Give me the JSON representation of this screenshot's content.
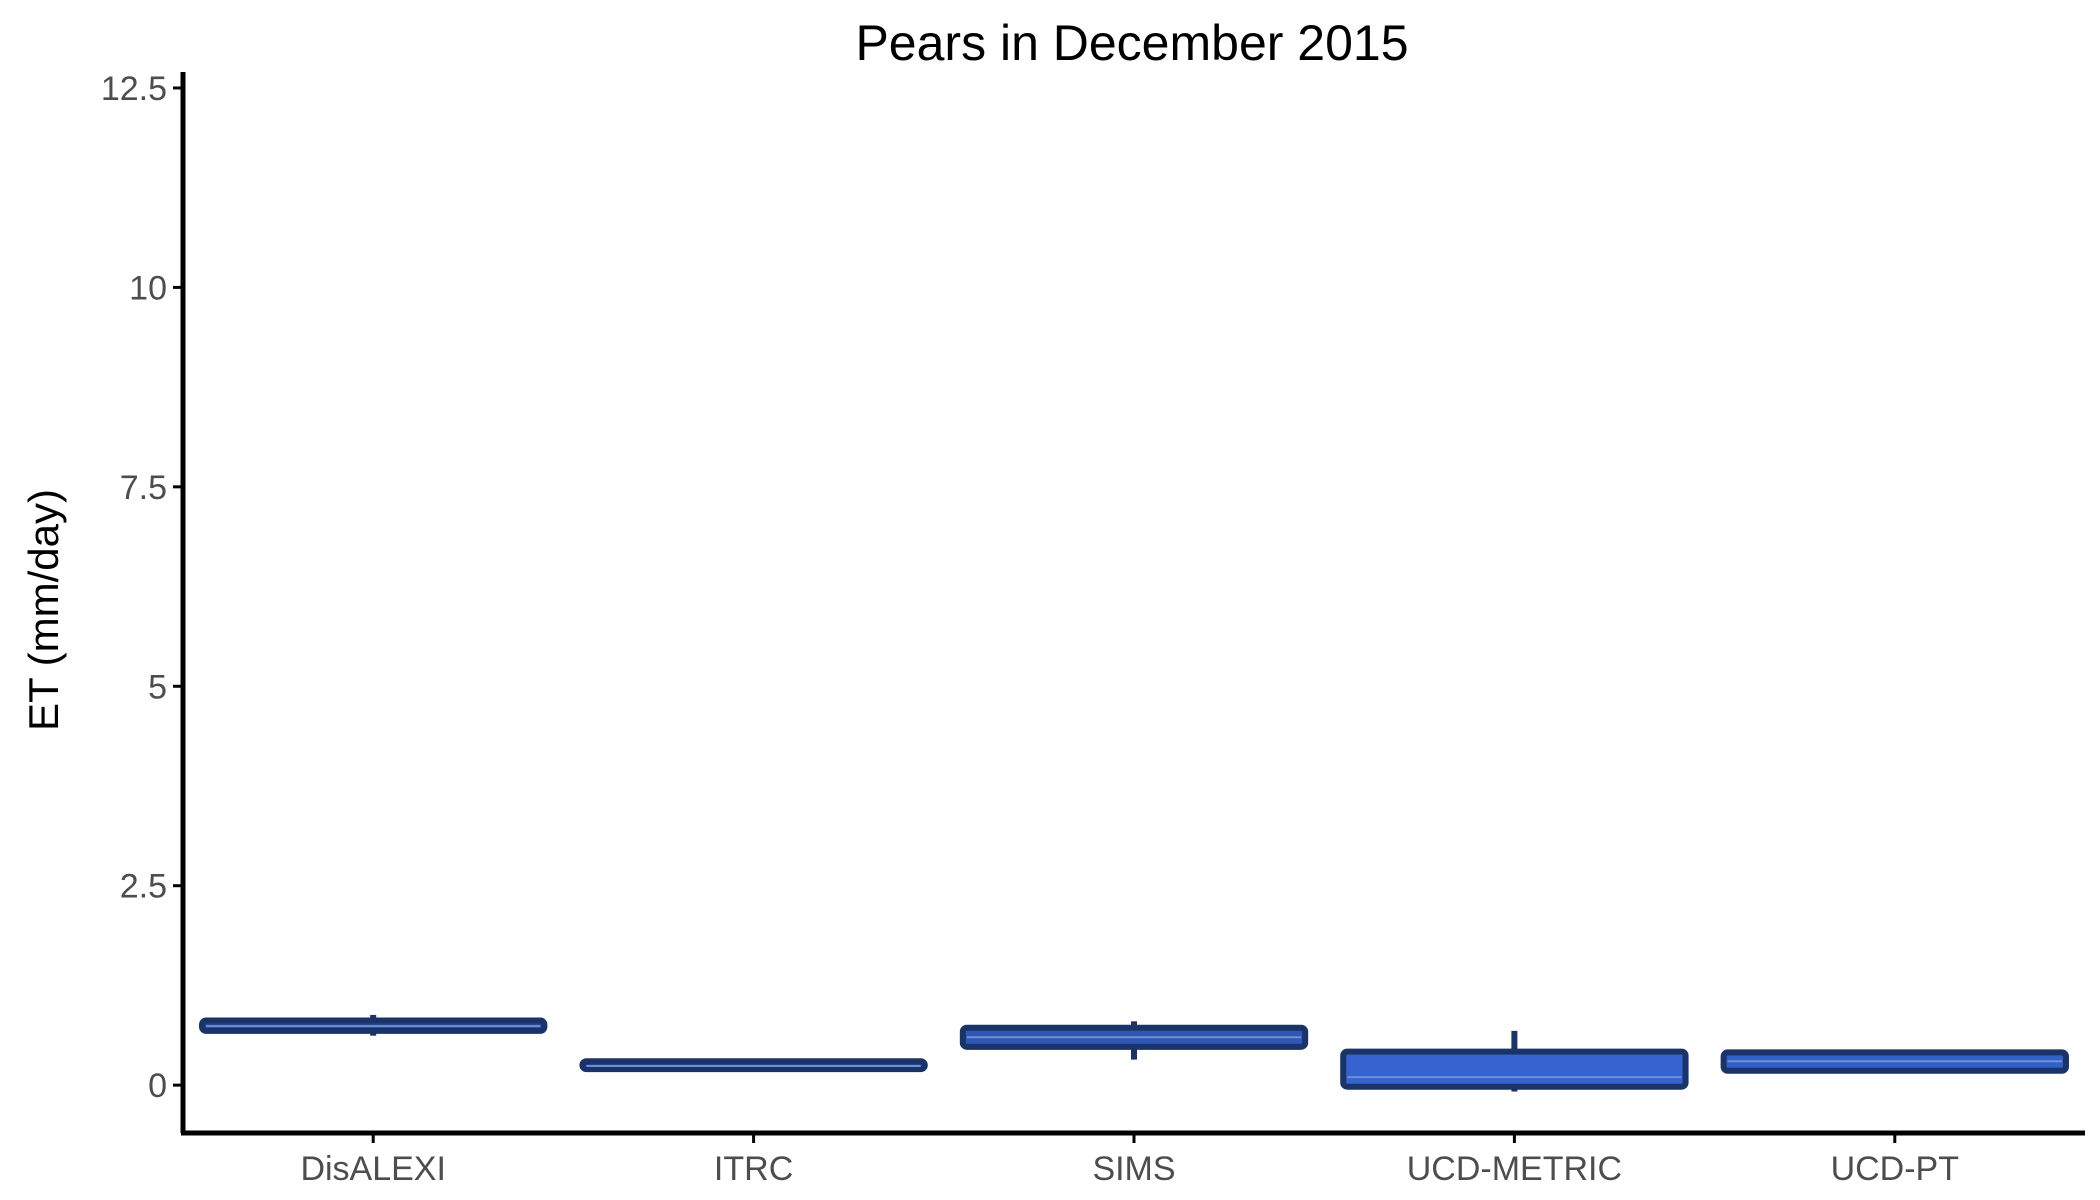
{
  "chart_data": {
    "type": "boxplot",
    "title": "Pears in December 2015",
    "xlabel": "",
    "ylabel": "ET (mm/day)",
    "ylim": [
      -0.6,
      12.6
    ],
    "yticks": [
      0,
      2.5,
      5,
      7.5,
      10,
      12.5
    ],
    "ytick_labels": [
      "0",
      "2.5",
      "5",
      "7.5",
      "10",
      "12.5"
    ],
    "categories": [
      "DisALEXI",
      "ITRC",
      "SIMS",
      "UCD-METRIC",
      "UCD-PT"
    ],
    "boxes": [
      {
        "category": "DisALEXI",
        "whisker_low": 0.62,
        "q1": 0.68,
        "median": 0.74,
        "q3": 0.81,
        "whisker_high": 0.88,
        "fill": "#2b4a8c"
      },
      {
        "category": "ITRC",
        "whisker_low": 0.19,
        "q1": 0.2,
        "median": 0.24,
        "q3": 0.3,
        "whisker_high": 0.31,
        "fill": "#2b4a8c"
      },
      {
        "category": "SIMS",
        "whisker_low": 0.32,
        "q1": 0.48,
        "median": 0.6,
        "q3": 0.72,
        "whisker_high": 0.8,
        "fill": "#2f57b3"
      },
      {
        "category": "UCD-METRIC",
        "whisker_low": -0.08,
        "q1": -0.02,
        "median": 0.1,
        "q3": 0.42,
        "whisker_high": 0.68,
        "fill": "#3563d0"
      },
      {
        "category": "UCD-PT",
        "whisker_low": 0.17,
        "q1": 0.18,
        "median": 0.3,
        "q3": 0.41,
        "whisker_high": 0.42,
        "fill": "#3060c8"
      }
    ],
    "grid": false,
    "legend": "none",
    "colors": {
      "outline": "#1a3368",
      "axis": "#000000",
      "tick_text": "#4d4d4d"
    }
  }
}
